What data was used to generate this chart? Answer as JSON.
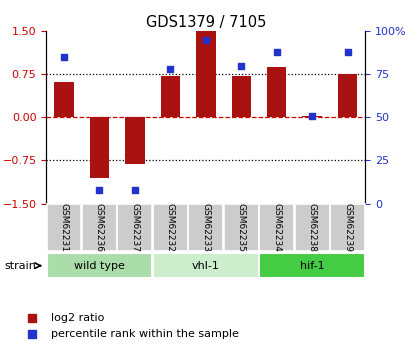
{
  "title": "GDS1379 / 7105",
  "samples": [
    "GSM62231",
    "GSM62236",
    "GSM62237",
    "GSM62232",
    "GSM62233",
    "GSM62235",
    "GSM62234",
    "GSM62238",
    "GSM62239"
  ],
  "log2_ratio": [
    0.62,
    -1.05,
    -0.82,
    0.72,
    1.5,
    0.72,
    0.87,
    0.02,
    0.76
  ],
  "percentile_rank": [
    85,
    8,
    8,
    78,
    95,
    80,
    88,
    51,
    88
  ],
  "groups": [
    {
      "label": "wild type",
      "indices": [
        0,
        1,
        2
      ],
      "color": "#aaddaa"
    },
    {
      "label": "vhl-1",
      "indices": [
        3,
        4,
        5
      ],
      "color": "#cceecc"
    },
    {
      "label": "hif-1",
      "indices": [
        6,
        7,
        8
      ],
      "color": "#44cc44"
    }
  ],
  "strain_label": "strain",
  "bar_color": "#aa1111",
  "dot_color": "#2233cc",
  "ylim_left": [
    -1.5,
    1.5
  ],
  "yticks_left": [
    -1.5,
    -0.75,
    0,
    0.75,
    1.5
  ],
  "ylim_right": [
    0,
    100
  ],
  "yticks_right": [
    0,
    25,
    50,
    75,
    100
  ],
  "yticklabels_right": [
    "0",
    "25",
    "50",
    "75",
    "100%"
  ],
  "hline_dashed_color": "#cc0000",
  "hline_dotted_color": "#000000",
  "legend_log2": "log2 ratio",
  "legend_pct": "percentile rank within the sample"
}
